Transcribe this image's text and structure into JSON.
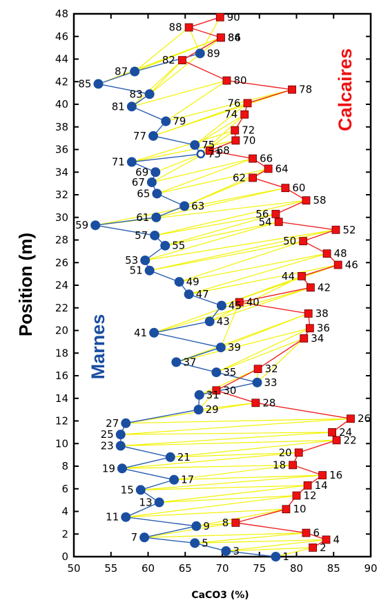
{
  "chart_data": {
    "type": "scatter",
    "xlabel": "CaCO3 (%)",
    "ylabel": "Position (m)",
    "xlim": [
      50,
      90
    ],
    "ylim": [
      0,
      48
    ],
    "xticks": [
      "50",
      "55",
      "60",
      "65",
      "70",
      "75",
      "80",
      "85",
      "90"
    ],
    "yticks": [
      "0",
      "2",
      "4",
      "6",
      "8",
      "10",
      "12",
      "14",
      "16",
      "18",
      "20",
      "22",
      "24",
      "26",
      "28",
      "30",
      "32",
      "34",
      "36",
      "38",
      "40",
      "42",
      "44",
      "46",
      "48"
    ],
    "annotations": {
      "marnes": "Marnes",
      "calcaires": "Calcaires"
    },
    "colors": {
      "marnes": "#1a4ea0",
      "calcaires": "#ee1111",
      "connector": "#f2f200",
      "blue_line": "#2a5fb0",
      "red_line": "#ee2222"
    },
    "points": [
      {
        "label": "1",
        "x": 77.2,
        "y": 0.0
      },
      {
        "label": "2",
        "x": 82.2,
        "y": 0.8
      },
      {
        "label": "3",
        "x": 70.5,
        "y": 0.5
      },
      {
        "label": "4",
        "x": 84.0,
        "y": 1.5
      },
      {
        "label": "5",
        "x": 66.3,
        "y": 1.2
      },
      {
        "label": "6",
        "x": 81.3,
        "y": 2.1
      },
      {
        "label": "7",
        "x": 59.5,
        "y": 1.7
      },
      {
        "label": "8",
        "x": 71.8,
        "y": 3.0
      },
      {
        "label": "9",
        "x": 66.5,
        "y": 2.7
      },
      {
        "label": "10",
        "x": 78.6,
        "y": 4.2
      },
      {
        "label": "11",
        "x": 57.0,
        "y": 3.5
      },
      {
        "label": "12",
        "x": 80.0,
        "y": 5.4
      },
      {
        "label": "13",
        "x": 61.5,
        "y": 4.8
      },
      {
        "label": "14",
        "x": 81.5,
        "y": 6.3
      },
      {
        "label": "15",
        "x": 59.0,
        "y": 5.9
      },
      {
        "label": "16",
        "x": 83.5,
        "y": 7.2
      },
      {
        "label": "17",
        "x": 63.5,
        "y": 6.8
      },
      {
        "label": "18",
        "x": 79.5,
        "y": 8.1
      },
      {
        "label": "19",
        "x": 56.5,
        "y": 7.8
      },
      {
        "label": "20",
        "x": 80.3,
        "y": 9.2
      },
      {
        "label": "21",
        "x": 63.0,
        "y": 8.8
      },
      {
        "label": "22",
        "x": 85.4,
        "y": 10.3
      },
      {
        "label": "23",
        "x": 56.3,
        "y": 9.8
      },
      {
        "label": "24",
        "x": 84.8,
        "y": 11.0
      },
      {
        "label": "25",
        "x": 56.3,
        "y": 10.8
      },
      {
        "label": "26",
        "x": 87.3,
        "y": 12.2
      },
      {
        "label": "27",
        "x": 57.0,
        "y": 11.8
      },
      {
        "label": "28",
        "x": 74.5,
        "y": 13.6
      },
      {
        "label": "29",
        "x": 66.8,
        "y": 13.0
      },
      {
        "label": "30",
        "x": 69.2,
        "y": 14.7
      },
      {
        "label": "31",
        "x": 66.9,
        "y": 14.3
      },
      {
        "label": "32",
        "x": 74.8,
        "y": 16.6
      },
      {
        "label": "33",
        "x": 74.7,
        "y": 15.4
      },
      {
        "label": "34",
        "x": 81.0,
        "y": 19.3
      },
      {
        "label": "35",
        "x": 69.2,
        "y": 16.3
      },
      {
        "label": "36",
        "x": 81.8,
        "y": 20.2
      },
      {
        "label": "37",
        "x": 63.8,
        "y": 17.2
      },
      {
        "label": "38",
        "x": 81.6,
        "y": 21.5
      },
      {
        "label": "39",
        "x": 69.8,
        "y": 18.5
      },
      {
        "label": "40",
        "x": 72.3,
        "y": 22.5
      },
      {
        "label": "41",
        "x": 60.8,
        "y": 19.8
      },
      {
        "label": "42",
        "x": 81.9,
        "y": 23.8
      },
      {
        "label": "43",
        "x": 68.3,
        "y": 20.8
      },
      {
        "label": "44",
        "x": 80.7,
        "y": 24.8
      },
      {
        "label": "45",
        "x": 69.9,
        "y": 22.2
      },
      {
        "label": "46",
        "x": 85.6,
        "y": 25.8
      },
      {
        "label": "47",
        "x": 65.5,
        "y": 23.2
      },
      {
        "label": "48",
        "x": 84.1,
        "y": 26.8
      },
      {
        "label": "49",
        "x": 64.2,
        "y": 24.3
      },
      {
        "label": "50",
        "x": 80.9,
        "y": 27.9
      },
      {
        "label": "51",
        "x": 60.2,
        "y": 25.3
      },
      {
        "label": "52",
        "x": 85.3,
        "y": 28.9
      },
      {
        "label": "53",
        "x": 59.6,
        "y": 26.2
      },
      {
        "label": "54",
        "x": 77.6,
        "y": 29.6
      },
      {
        "label": "55",
        "x": 62.3,
        "y": 27.5
      },
      {
        "label": "56",
        "x": 77.2,
        "y": 30.3
      },
      {
        "label": "57",
        "x": 60.9,
        "y": 28.4
      },
      {
        "label": "58",
        "x": 81.3,
        "y": 31.5
      },
      {
        "label": "59",
        "x": 52.9,
        "y": 29.3
      },
      {
        "label": "60",
        "x": 78.5,
        "y": 32.6
      },
      {
        "label": "61",
        "x": 61.1,
        "y": 30.0
      },
      {
        "label": "62",
        "x": 74.1,
        "y": 33.5
      },
      {
        "label": "63",
        "x": 64.9,
        "y": 31.0
      },
      {
        "label": "64",
        "x": 76.2,
        "y": 34.3
      },
      {
        "label": "65",
        "x": 61.2,
        "y": 32.1
      },
      {
        "label": "66",
        "x": 74.1,
        "y": 35.2
      },
      {
        "label": "67",
        "x": 60.5,
        "y": 33.1
      },
      {
        "label": "68",
        "x": 68.3,
        "y": 35.9
      },
      {
        "label": "69",
        "x": 61.0,
        "y": 34.0
      },
      {
        "label": "70",
        "x": 71.8,
        "y": 36.8
      },
      {
        "label": "71",
        "x": 57.8,
        "y": 34.9
      },
      {
        "label": "72",
        "x": 71.7,
        "y": 37.7
      },
      {
        "label": "73",
        "x": 67.1,
        "y": 35.6
      },
      {
        "label": "74",
        "x": 73.0,
        "y": 39.1
      },
      {
        "label": "75",
        "x": 66.3,
        "y": 36.4
      },
      {
        "label": "76",
        "x": 73.4,
        "y": 40.1
      },
      {
        "label": "77",
        "x": 60.7,
        "y": 37.2
      },
      {
        "label": "78",
        "x": 79.4,
        "y": 41.3
      },
      {
        "label": "79",
        "x": 62.4,
        "y": 38.5
      },
      {
        "label": "80",
        "x": 70.6,
        "y": 42.1
      },
      {
        "label": "81",
        "x": 57.8,
        "y": 39.8
      },
      {
        "label": "82",
        "x": 64.6,
        "y": 43.9
      },
      {
        "label": "83",
        "x": 60.2,
        "y": 40.9
      },
      {
        "label": "84",
        "x": 69.8,
        "y": 45.9
      },
      {
        "label": "85",
        "x": 53.3,
        "y": 41.8
      },
      {
        "label": "86",
        "x": 69.8,
        "y": 45.9
      },
      {
        "label": "87",
        "x": 58.2,
        "y": 42.9
      },
      {
        "label": "88",
        "x": 65.5,
        "y": 46.8
      },
      {
        "label": "89",
        "x": 67.0,
        "y": 44.5
      },
      {
        "label": "90",
        "x": 69.7,
        "y": 47.7
      }
    ]
  }
}
